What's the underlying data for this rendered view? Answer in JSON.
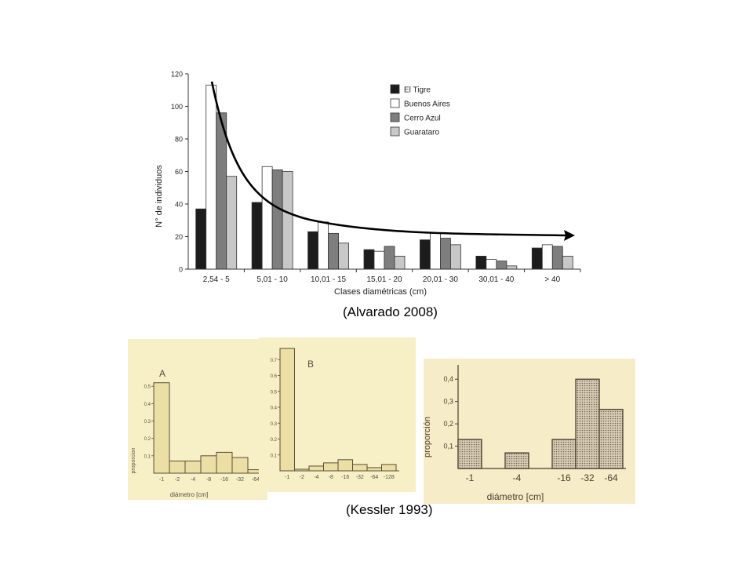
{
  "captions": {
    "top": "(Alvarado 2008)",
    "bottom": "(Kessler 1993)"
  },
  "colors": {
    "el_tigre": "#1c1c1c",
    "buenos_aires": "#ffffff",
    "cerro_azul": "#7e7e7e",
    "guarataro": "#c8c8c8",
    "panel_bg": "#f7efc6",
    "bar_fill": "#ecdfa6",
    "bar_stroke": "#5a4e35",
    "hatch_bar": "#bdb2a2",
    "ink": "#4a4030"
  },
  "chart_data": [
    {
      "id": "alvarado",
      "type": "bar",
      "ylabel": "N° de individuos",
      "xlabel": "Clases diamétricas (cm)",
      "ylim": [
        0,
        120
      ],
      "yticks": [
        0,
        20,
        40,
        60,
        80,
        100,
        120
      ],
      "legend": "top-right",
      "categories": [
        "2,54 - 5",
        "5,01 - 10",
        "10,01 - 15",
        "15,01 - 20",
        "20,01 - 30",
        "30,01 - 40",
        "> 40"
      ],
      "series": [
        {
          "name": "El Tigre",
          "color": "#1c1c1c",
          "values": [
            37,
            41,
            23,
            12,
            18,
            8,
            13
          ]
        },
        {
          "name": "Buenos Aires",
          "color": "#ffffff",
          "values": [
            113,
            63,
            29,
            11,
            22,
            6,
            15
          ]
        },
        {
          "name": "Cerro Azul",
          "color": "#7e7e7e",
          "values": [
            96,
            61,
            22,
            14,
            19,
            5,
            14
          ]
        },
        {
          "name": "Guarataro",
          "color": "#c8c8c8",
          "values": [
            57,
            60,
            16,
            8,
            15,
            2,
            8
          ]
        }
      ],
      "trend_arrow": true
    },
    {
      "id": "kessler-a",
      "type": "bar",
      "panel_label": "A",
      "ylabel": "proporcion",
      "xlabel": "diámetro [cm]",
      "ylim": [
        0,
        0.6
      ],
      "yticks": [
        "0.1",
        "0.2",
        "0.3",
        "0.4",
        "0.5"
      ],
      "ytick_values": [
        0.1,
        0.2,
        0.3,
        0.4,
        0.5
      ],
      "categories": [
        "-1",
        "-2",
        "-4",
        "-8",
        "-16",
        "-32",
        "-64"
      ],
      "values": [
        0.52,
        0.07,
        0.07,
        0.1,
        0.12,
        0.09,
        0.02
      ]
    },
    {
      "id": "kessler-b",
      "type": "bar",
      "panel_label": "B",
      "ylim": [
        0,
        0.8
      ],
      "yticks": [
        "0.1",
        "0.2",
        "0.3",
        "0.4",
        "0.5",
        "0.6",
        "0.7"
      ],
      "ytick_values": [
        0.1,
        0.2,
        0.3,
        0.4,
        0.5,
        0.6,
        0.7
      ],
      "categories": [
        "-1",
        "-2",
        "-4",
        "-8",
        "-16",
        "-32",
        "-64",
        "-128"
      ],
      "values": [
        0.77,
        0.01,
        0.03,
        0.05,
        0.07,
        0.04,
        0.02,
        0.04
      ]
    },
    {
      "id": "kessler-c",
      "type": "bar",
      "ylabel": "proporción",
      "xlabel": "diámetro [cm]",
      "ylim": [
        0,
        0.45
      ],
      "yticks": [
        "0,1",
        "0,2",
        "0,3",
        "0,4"
      ],
      "ytick_values": [
        0.1,
        0.2,
        0.3,
        0.4
      ],
      "categories": [
        "-1",
        "",
        "-4",
        "",
        "-16",
        "-32",
        "-64"
      ],
      "values": [
        0.13,
        0,
        0.07,
        0,
        0.13,
        0.4,
        0.265
      ]
    }
  ]
}
